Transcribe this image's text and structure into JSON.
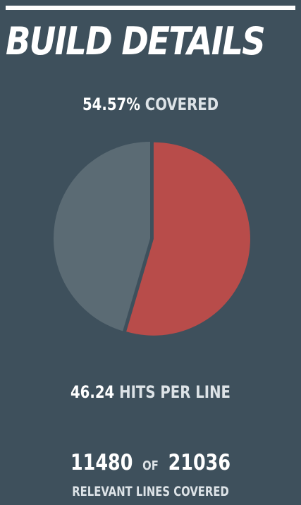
{
  "header": {
    "title": "BUILD DETAILS"
  },
  "coverage": {
    "percent_text": "54.57%",
    "label": "COVERED"
  },
  "hits": {
    "value": "46.24",
    "label": "HITS PER LINE"
  },
  "lines": {
    "covered": "11480",
    "of_label": "OF",
    "relevant": "21036",
    "caption": "RELEVANT LINES COVERED"
  },
  "chart_data": {
    "type": "pie",
    "slices": [
      {
        "value": 54.57,
        "color": "#b84c4a"
      },
      {
        "value": 45.43,
        "color": "#5b6b74"
      }
    ],
    "start_angle_deg": 0,
    "exploded_slice": 0
  },
  "colors": {
    "background": "#3e505c",
    "covered": "#b84c4a",
    "uncovered": "#5b6b74"
  }
}
